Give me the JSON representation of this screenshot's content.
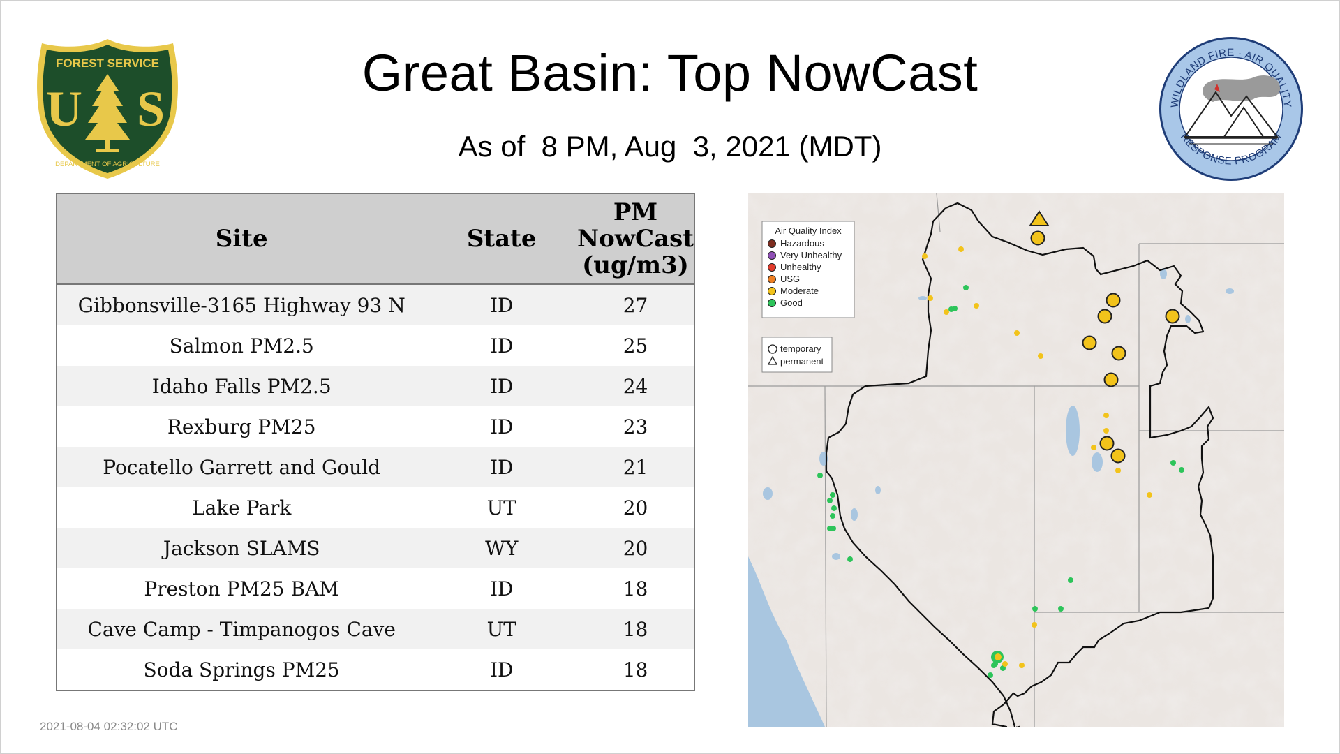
{
  "title": "Great Basin: Top NowCast",
  "subtitle": "As of  8 PM, Aug  3, 2021 (MDT)",
  "logos": {
    "left": {
      "icon": "forest-service-shield-logo",
      "text_top": "FOREST SERVICE",
      "text_main": "US",
      "text_bottom": "DEPARTMENT OF AGRICULTURE",
      "color_fill": "#1d4e2a",
      "color_accent": "#e8c84a"
    },
    "right": {
      "icon": "wildland-fire-air-quality-logo",
      "text_top": "WILDLAND FIRE · AIR QUALITY",
      "text_bottom": "RESPONSE PROGRAM",
      "color_ring": "#a9c7e8",
      "color_border": "#1f3d78"
    }
  },
  "table": {
    "headers": {
      "site": "Site",
      "state": "State",
      "value_line1": "PM",
      "value_line2": "NowCast",
      "value_line3": "(ug/m3)"
    },
    "rows": [
      {
        "site": "Gibbonsville-3165 Highway 93 N",
        "state": "ID",
        "value": "27"
      },
      {
        "site": "Salmon PM2.5",
        "state": "ID",
        "value": "25"
      },
      {
        "site": "Idaho Falls PM2.5",
        "state": "ID",
        "value": "24"
      },
      {
        "site": "Rexburg PM25",
        "state": "ID",
        "value": "23"
      },
      {
        "site": "Pocatello Garrett and Gould",
        "state": "ID",
        "value": "21"
      },
      {
        "site": "Lake Park",
        "state": "UT",
        "value": "20"
      },
      {
        "site": "Jackson SLAMS",
        "state": "WY",
        "value": "20"
      },
      {
        "site": "Preston PM25 BAM",
        "state": "ID",
        "value": "18"
      },
      {
        "site": "Cave Camp - Timpanogos Cave",
        "state": "UT",
        "value": "18"
      },
      {
        "site": "Soda Springs PM25",
        "state": "ID",
        "value": "18"
      }
    ]
  },
  "timestamp": "2021-08-04 02:32:02 UTC",
  "map": {
    "legend_aqi": {
      "title": "Air Quality Index",
      "items": [
        {
          "label": "Hazardous",
          "color": "#7e2c1f"
        },
        {
          "label": "Very Unhealthy",
          "color": "#8f4fb5"
        },
        {
          "label": "Unhealthy",
          "color": "#e23b2b"
        },
        {
          "label": "USG",
          "color": "#ee7f22"
        },
        {
          "label": "Moderate",
          "color": "#f2c31b"
        },
        {
          "label": "Good",
          "color": "#2dc45a"
        }
      ]
    },
    "legend_shape": {
      "items": [
        {
          "label": "temporary",
          "icon": "circle-icon"
        },
        {
          "label": "permanent",
          "icon": "triangle-icon"
        }
      ]
    },
    "colors": {
      "moderate": "#f2c31b",
      "good": "#2dc45a",
      "water": "#a9c6e0",
      "land": "#ebe6e2",
      "boundary": "#111111",
      "state_line": "#9a9a9a"
    }
  }
}
